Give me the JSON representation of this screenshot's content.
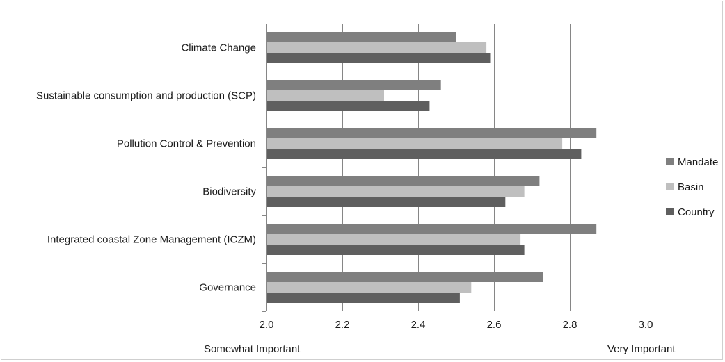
{
  "chart_data": {
    "type": "bar",
    "orientation": "horizontal",
    "categories": [
      "Climate Change",
      "Sustainable consumption and production (SCP)",
      "Pollution Control & Prevention",
      "Biodiversity",
      "Integrated coastal Zone Management (ICZM)",
      "Governance"
    ],
    "series": [
      {
        "name": "Mandate",
        "color": "#7f7f7f",
        "values": [
          2.5,
          2.46,
          2.87,
          2.72,
          2.87,
          2.73
        ]
      },
      {
        "name": "Basin",
        "color": "#bfbfbf",
        "values": [
          2.58,
          2.31,
          2.78,
          2.68,
          2.67,
          2.54
        ]
      },
      {
        "name": "Country",
        "color": "#5f5f5f",
        "values": [
          2.59,
          2.43,
          2.83,
          2.63,
          2.68,
          2.51
        ]
      }
    ],
    "xlim": [
      2.0,
      3.0
    ],
    "xticks": [
      "2.0",
      "2.2",
      "2.4",
      "2.6",
      "2.8",
      "3.0"
    ],
    "xtick_values": [
      2.0,
      2.2,
      2.4,
      2.6,
      2.8,
      3.0
    ],
    "bottom_labels": {
      "left": "Somewhat Important",
      "right": "Very Important"
    },
    "legend_position": "right",
    "grid": "vertical",
    "gridline_color": "#868686"
  }
}
